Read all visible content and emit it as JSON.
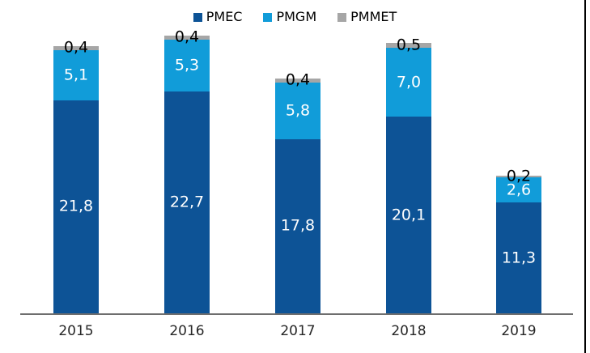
{
  "chart_data": {
    "type": "bar",
    "stacked": true,
    "title": "",
    "categories": [
      "2015",
      "2016",
      "2017",
      "2018",
      "2019"
    ],
    "series": [
      {
        "name": "PMEC",
        "color": "#0d5396",
        "label_color": "#ffffff",
        "values": [
          21.8,
          22.7,
          17.8,
          20.1,
          11.3
        ],
        "labels": [
          "21,8",
          "22,7",
          "17,8",
          "20,1",
          "11,3"
        ]
      },
      {
        "name": "PMGM",
        "color": "#119cd9",
        "label_color": "#ffffff",
        "values": [
          5.1,
          5.3,
          5.8,
          7.0,
          2.6
        ],
        "labels": [
          "5,1",
          "5,3",
          "5,8",
          "7,0",
          "2,6"
        ]
      },
      {
        "name": "PMMET",
        "color": "#a6a6a6",
        "label_color": "#000000",
        "values": [
          0.4,
          0.4,
          0.4,
          0.5,
          0.2
        ],
        "labels": [
          "0,4",
          "0,4",
          "0,4",
          "0,5",
          "0,2"
        ]
      }
    ],
    "legend_position": "top",
    "grid": false,
    "y_axis_visible": false,
    "ylim": [
      0,
      28.4
    ],
    "decimal_separator": ",",
    "axis_line_color": "#6e6e6e",
    "tick_label_color": "#262626",
    "window_right_border_color": "#000000"
  }
}
